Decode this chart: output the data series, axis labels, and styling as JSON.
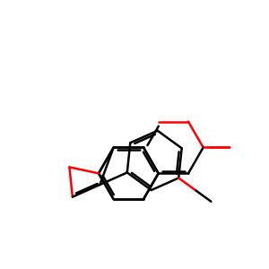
{
  "background_color": "#ffffff",
  "bond_color": "#000000",
  "oxygen_color": "#ff0000",
  "line_width": 1.8,
  "figsize": [
    3.0,
    3.0
  ],
  "dpi": 100,
  "xlim": [
    0.5,
    9.5
  ],
  "ylim": [
    1.5,
    9.5
  ]
}
